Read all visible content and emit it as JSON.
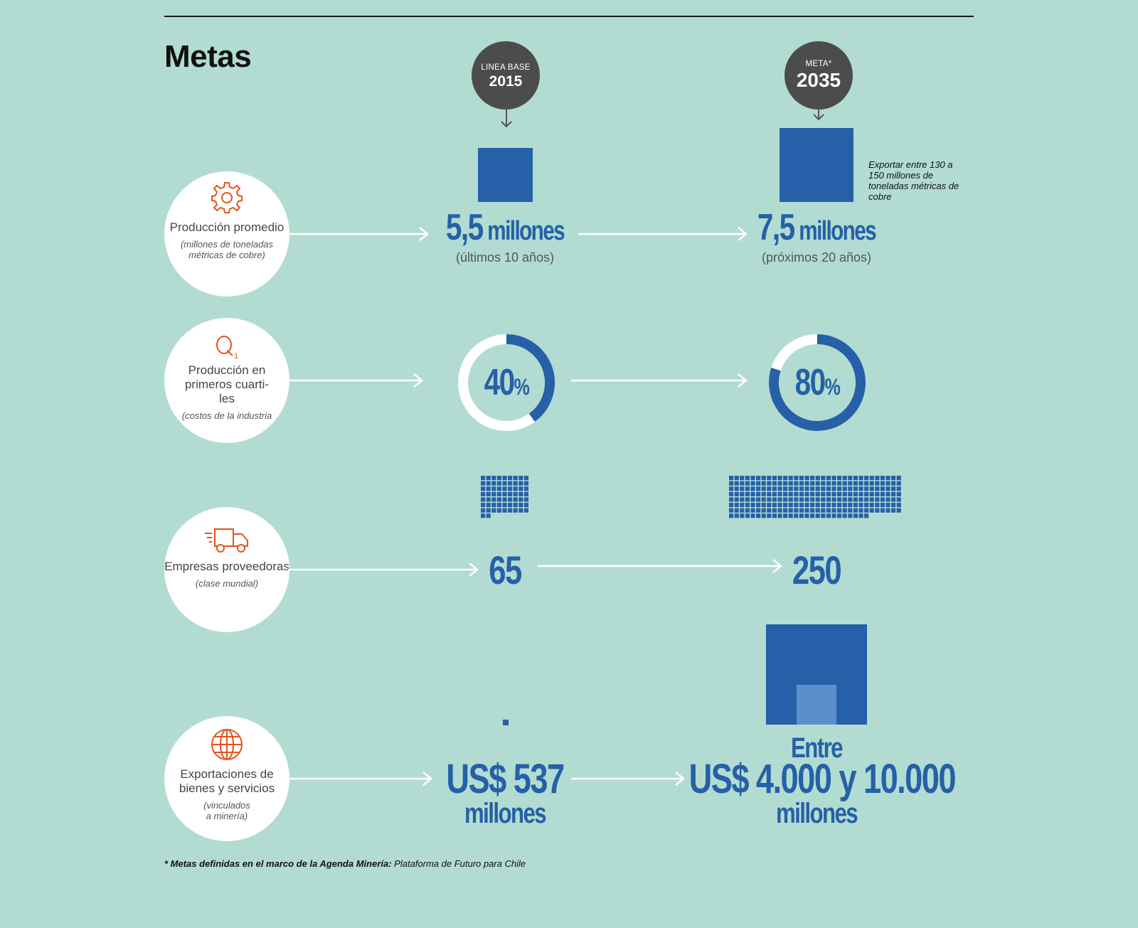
{
  "title": "Metas",
  "badges": {
    "base": {
      "small": "LINEA BASE",
      "big": "2015"
    },
    "meta": {
      "small": "META*",
      "big": "2035"
    }
  },
  "rows": [
    {
      "label": "Producción promedio",
      "note": "(millones de toneladas métricas de cobre)",
      "icon": "gear-icon",
      "base_value": "5,5",
      "base_unit": "millones",
      "base_sub": "(últimos 10 años)",
      "goal_value": "7,5",
      "goal_unit": "millones",
      "goal_sub": "(próximos 20 años)",
      "side_note": "Exportar entre 130 a 150 millones de toneladas métricas de cobre"
    },
    {
      "label": "Producción en primeros cuarti-les",
      "note": "(costos de la industria",
      "icon": "q1-icon",
      "base_value": "40",
      "base_pct": 0.4,
      "goal_value": "80",
      "goal_pct": 0.8,
      "unit": "%"
    },
    {
      "label": "Empresas proveedoras",
      "note": "(clase mundial)",
      "icon": "truck-icon",
      "base_value": "65",
      "goal_value": "250",
      "base_count": 65,
      "goal_count": 250
    },
    {
      "label": "Exportaciones de bienes y servicios",
      "note": "(vinculados a minería)",
      "icon": "globe-icon",
      "base_value": "US$ 537",
      "base_unit": "millones",
      "goal_pre": "Entre",
      "goal_value": "US$ 4.000 y 10.000",
      "goal_unit": "millones"
    }
  ],
  "footnote": {
    "bold": "* Metas definidas en el marco de la Agenda Minería:",
    "rest": " Plataforma de Futuro para Chile"
  },
  "colors": {
    "background": "#b2dcd1",
    "accent": "#2560a8",
    "icon": "#e2541e",
    "badge": "#4c4c4c"
  }
}
